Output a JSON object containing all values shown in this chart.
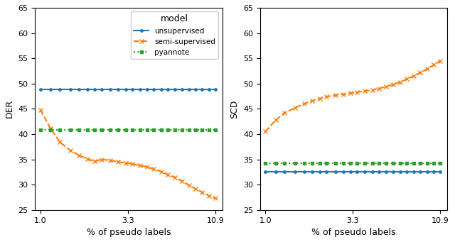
{
  "x": [
    1.0,
    1.15,
    1.3,
    1.5,
    1.7,
    1.9,
    2.1,
    2.3,
    2.6,
    2.9,
    3.2,
    3.5,
    3.9,
    4.3,
    4.7,
    5.2,
    5.7,
    6.3,
    6.9,
    7.6,
    8.3,
    9.1,
    10.0,
    10.9
  ],
  "der_unsupervised": [
    48.9,
    48.9,
    48.9,
    48.9,
    48.9,
    48.9,
    48.9,
    48.9,
    48.9,
    48.9,
    48.9,
    48.9,
    48.9,
    48.9,
    48.9,
    48.9,
    48.9,
    48.9,
    48.9,
    48.9,
    48.9,
    48.9,
    48.9,
    48.9
  ],
  "der_semi": [
    44.8,
    41.1,
    38.5,
    36.8,
    35.8,
    35.1,
    34.6,
    35.0,
    34.8,
    34.5,
    34.3,
    34.1,
    33.8,
    33.5,
    33.1,
    32.6,
    32.0,
    31.4,
    30.7,
    29.9,
    29.2,
    28.5,
    27.8,
    27.3
  ],
  "der_pyannote": [
    40.9,
    40.9,
    40.9,
    40.9,
    40.9,
    40.9,
    40.9,
    40.9,
    40.9,
    40.9,
    40.9,
    40.9,
    40.9,
    40.9,
    40.9,
    40.9,
    40.9,
    40.9,
    40.9,
    40.9,
    40.9,
    40.9,
    40.9,
    40.9
  ],
  "scd_unsupervised": [
    32.5,
    32.5,
    32.5,
    32.5,
    32.5,
    32.5,
    32.5,
    32.5,
    32.5,
    32.5,
    32.5,
    32.5,
    32.5,
    32.5,
    32.5,
    32.5,
    32.5,
    32.5,
    32.5,
    32.5,
    32.5,
    32.5,
    32.5,
    32.5
  ],
  "scd_semi": [
    40.5,
    42.8,
    44.2,
    45.2,
    46.0,
    46.6,
    47.0,
    47.4,
    47.7,
    47.9,
    48.1,
    48.3,
    48.5,
    48.7,
    49.0,
    49.4,
    49.8,
    50.3,
    50.9,
    51.5,
    52.2,
    52.9,
    53.7,
    54.5
  ],
  "scd_pyannote": [
    34.2,
    34.2,
    34.2,
    34.2,
    34.2,
    34.2,
    34.2,
    34.2,
    34.2,
    34.2,
    34.2,
    34.2,
    34.2,
    34.2,
    34.2,
    34.2,
    34.2,
    34.2,
    34.2,
    34.2,
    34.2,
    34.2,
    34.2,
    34.2
  ],
  "color_unsupervised": "#1f77b4",
  "color_semi": "#ff7f0e",
  "color_pyannote": "#2ca02c",
  "xticks": [
    1.0,
    3.3,
    10.9
  ],
  "xtick_labels": [
    "1.0",
    "3.3",
    "10.9"
  ],
  "ylim": [
    25,
    65
  ],
  "yticks": [
    25,
    30,
    35,
    40,
    45,
    50,
    55,
    60,
    65
  ],
  "xlabel": "% of pseudo labels",
  "ylabel_left": "DER",
  "ylabel_right": "SCD",
  "legend_title": "model",
  "legend_entries": [
    "unsupervised",
    "semi-supervised",
    "pyannote"
  ]
}
